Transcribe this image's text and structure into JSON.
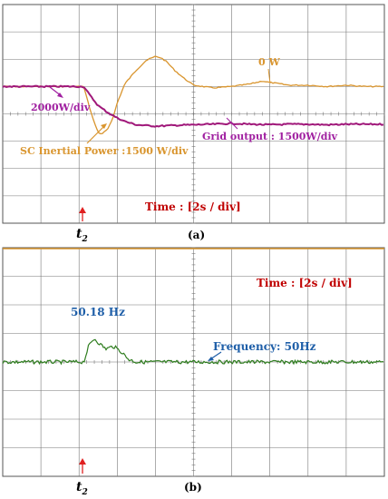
{
  "panel_a": {
    "caption": "(a)",
    "event_label": "t",
    "event_subscript": "2",
    "annotations": {
      "zero_w": "0 W",
      "div_2000": "2000W/div",
      "sc_power": "SC Inertial Power :1500 W/div",
      "grid_output": "Grid output  : 1500W/div",
      "time_div": "Time : [2s / div]"
    },
    "colors": {
      "sc": "#D9952E",
      "grid": "#A0187A",
      "annotation_purple": "#A020A0",
      "time_red": "#C00000",
      "marker": "#E02020"
    }
  },
  "panel_b": {
    "caption": "(b)",
    "event_label": "t",
    "event_subscript": "2",
    "annotations": {
      "peak": "50.18 Hz",
      "frequency": "Frequency: 50Hz",
      "time_div": "Time : [2s / div]"
    },
    "colors": {
      "freq": "#2E7D1E",
      "blue": "#1F5FA8",
      "time_red": "#C00000",
      "marker": "#E02020",
      "top_line": "#D9952E"
    }
  },
  "chart_data": [
    {
      "type": "line",
      "title": "",
      "xlabel": "Time : [2s / div]",
      "x_unit": "s",
      "xlim": [
        0,
        20
      ],
      "event_time": 4.25,
      "series": [
        {
          "name": "SC Inertial Power :1500 W/div",
          "x": [
            0,
            3.0,
            4.0,
            4.25,
            4.6,
            5.0,
            5.2,
            5.5,
            5.8,
            6.0,
            6.4,
            7.0,
            7.5,
            8.0,
            8.3,
            8.6,
            9.0,
            9.5,
            10.0,
            11.0,
            12.0,
            13.0,
            13.6,
            14.0,
            15.0,
            16.0,
            17.0,
            18.0,
            19.0,
            20.0
          ],
          "y": [
            0,
            0,
            0,
            0,
            -0.9,
            -1.7,
            -1.75,
            -1.55,
            -1.1,
            -0.6,
            0.1,
            0.6,
            0.95,
            1.1,
            1.05,
            0.9,
            0.6,
            0.3,
            0.05,
            -0.05,
            0.0,
            0.1,
            0.2,
            0.15,
            0.05,
            0.05,
            0.0,
            0.05,
            0.0,
            0.0
          ]
        },
        {
          "name": "Grid output  : 1500W/div",
          "x": [
            0,
            3.0,
            4.0,
            4.25,
            4.6,
            5.0,
            5.5,
            6.0,
            6.5,
            7.0,
            8.0,
            9.0,
            10.0,
            11.0,
            12.0,
            13.0,
            14.0,
            15.0,
            16.0,
            17.0,
            18.0,
            19.0,
            20.0
          ],
          "y": [
            0,
            0,
            0,
            0,
            -0.35,
            -0.7,
            -0.95,
            -1.15,
            -1.3,
            -1.4,
            -1.45,
            -1.42,
            -1.4,
            -1.38,
            -1.35,
            -1.38,
            -1.4,
            -1.38,
            -1.38,
            -1.4,
            -1.38,
            -1.38,
            -1.38
          ]
        }
      ]
    },
    {
      "type": "line",
      "title": "",
      "xlabel": "Time : [2s / div]",
      "x_unit": "s",
      "xlim": [
        0,
        20
      ],
      "event_time": 4.25,
      "series": [
        {
          "name": "Frequency: 50Hz",
          "unit": "Hz",
          "x": [
            0,
            4.0,
            4.25,
            4.5,
            4.8,
            5.0,
            5.4,
            5.8,
            6.2,
            6.6,
            7.0,
            8.0,
            10.0,
            12.0,
            14.0,
            16.0,
            18.0,
            20.0
          ],
          "y": [
            50.0,
            50.0,
            50.0,
            50.12,
            50.18,
            50.15,
            50.1,
            50.12,
            50.08,
            50.02,
            50.0,
            50.0,
            50.0,
            50.0,
            50.0,
            50.0,
            50.0,
            50.0
          ]
        }
      ]
    }
  ]
}
